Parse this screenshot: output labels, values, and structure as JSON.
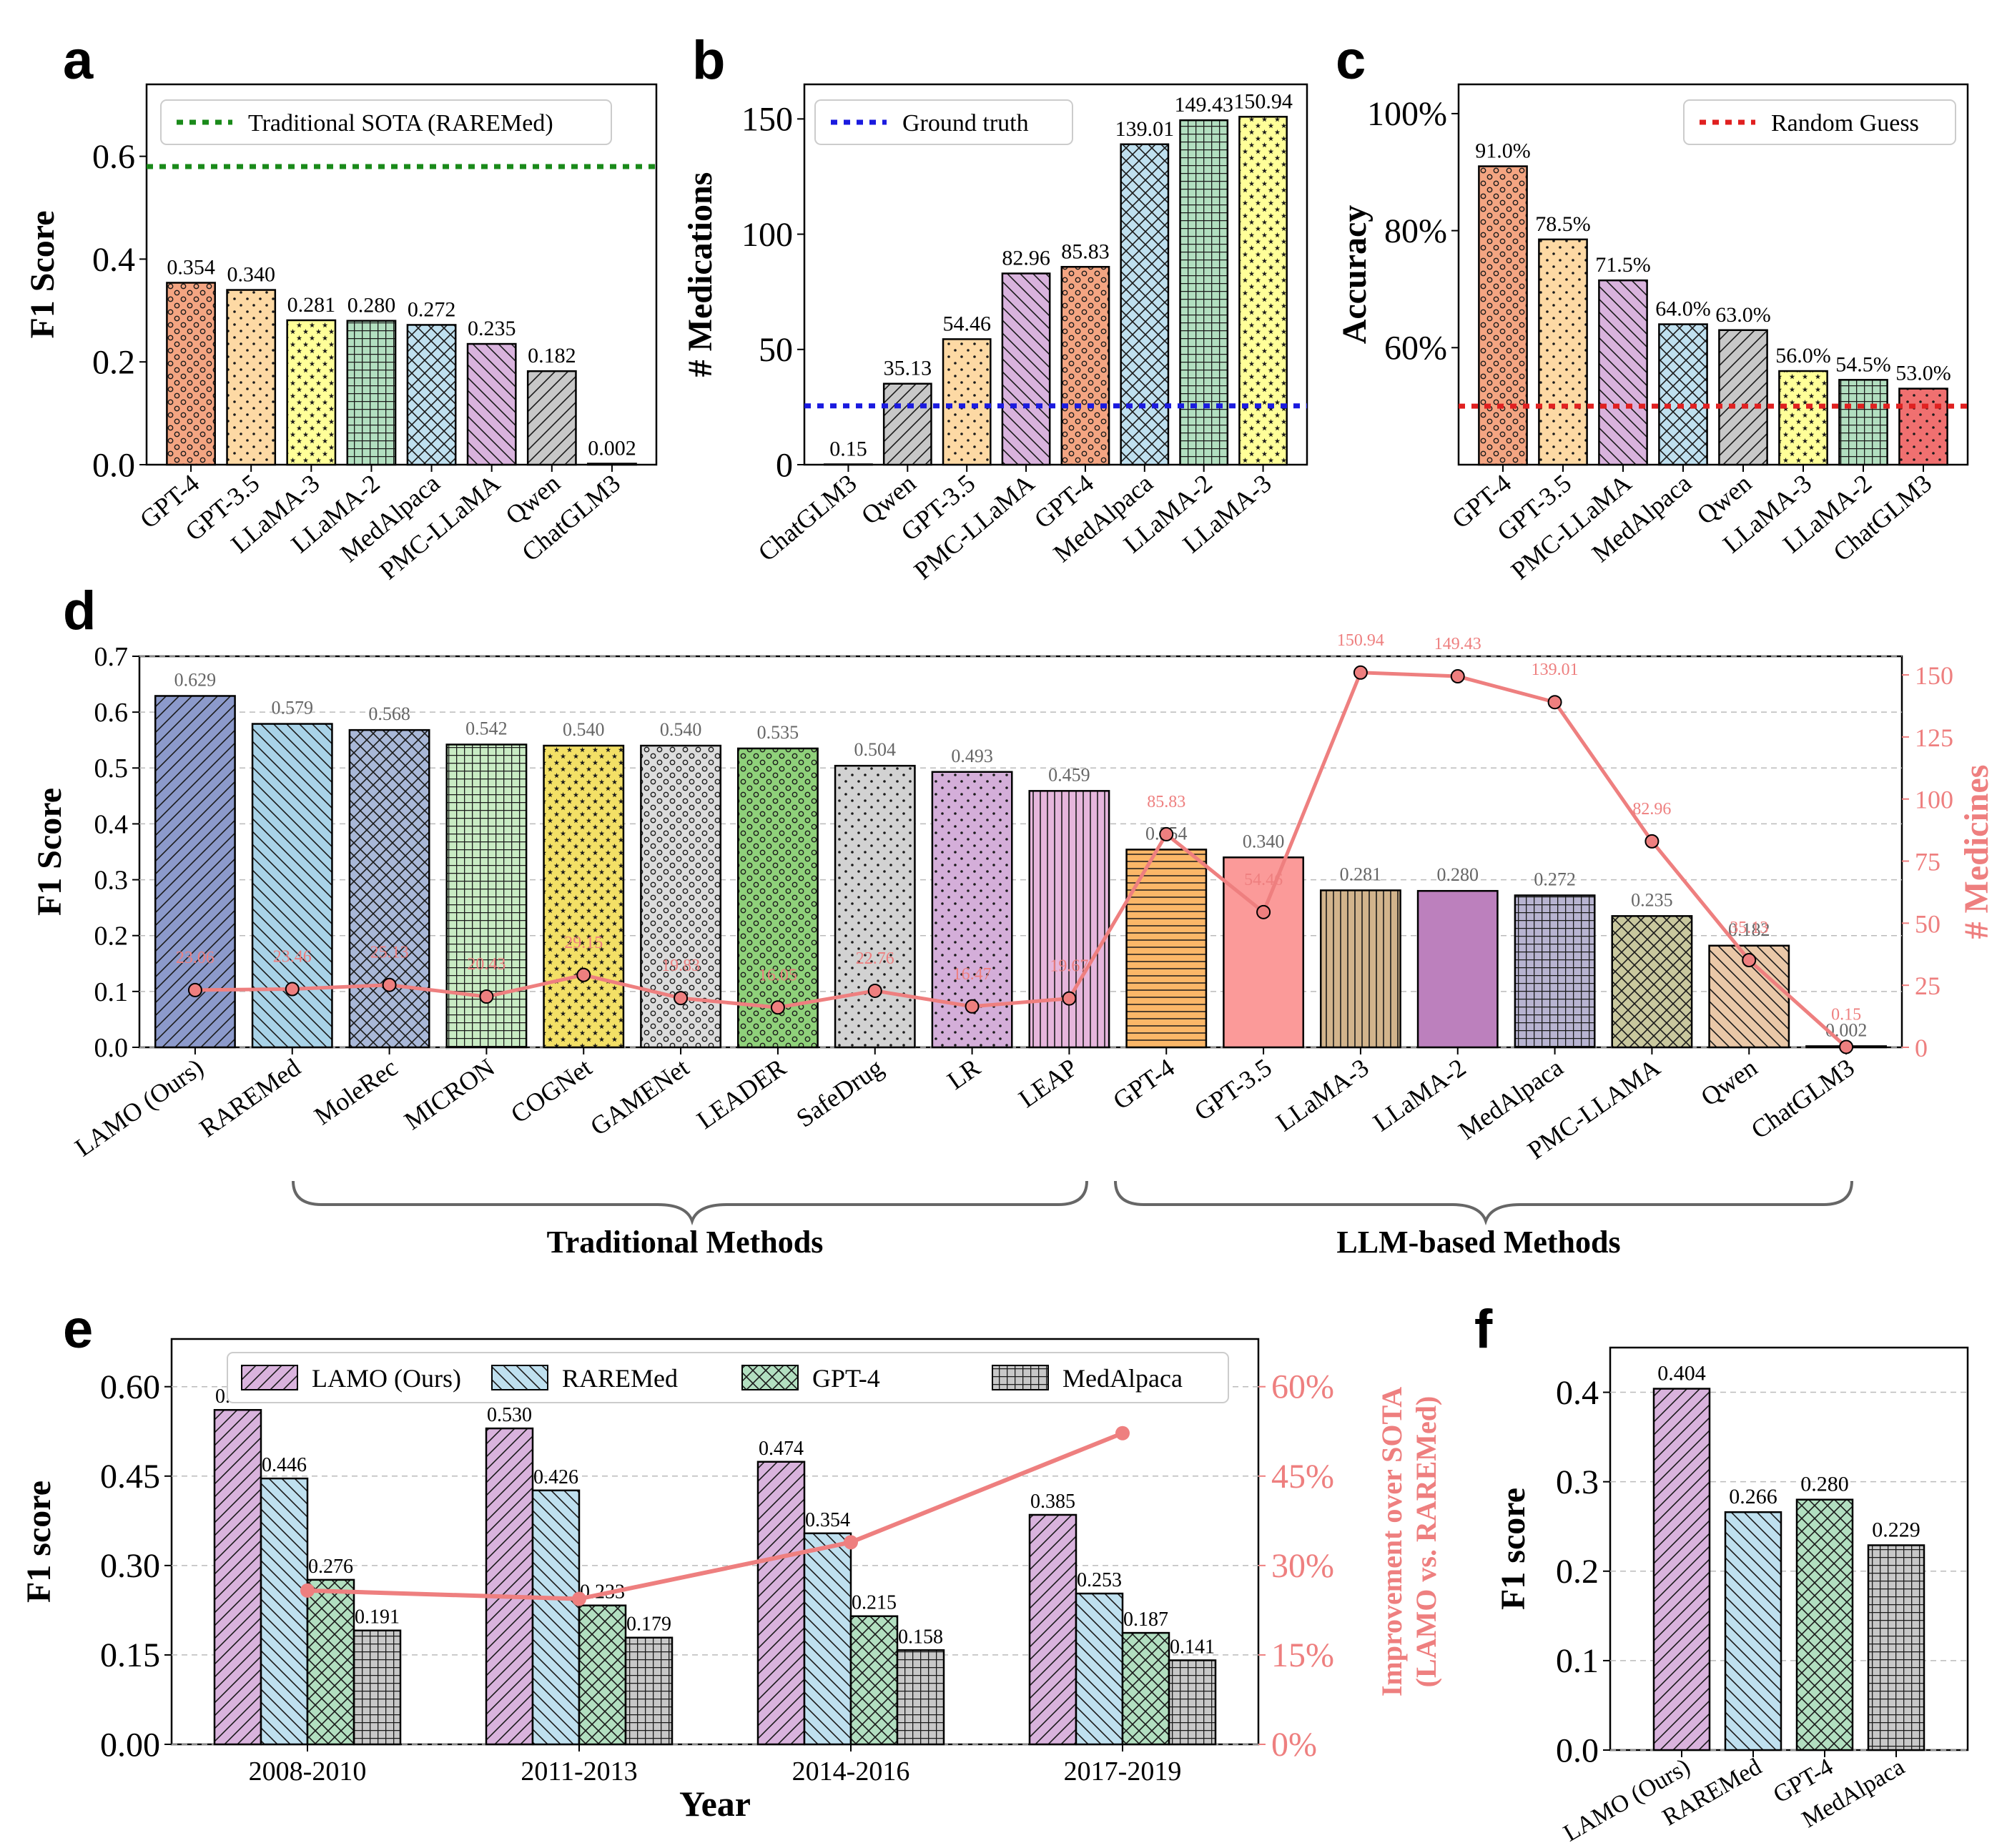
{
  "panels": {
    "a": {
      "letter": "a"
    },
    "b": {
      "letter": "b"
    },
    "c": {
      "letter": "c"
    },
    "d": {
      "letter": "d",
      "group_left": "Traditional Methods",
      "group_right": "LLM-based Methods"
    },
    "e": {
      "letter": "e"
    },
    "f": {
      "letter": "f"
    }
  },
  "chart_data": [
    {
      "id": "a",
      "type": "bar",
      "ylabel": "F1 Score",
      "ylim": [
        0,
        0.74
      ],
      "yticks": [
        "0.0",
        "0.2",
        "0.4",
        "0.6"
      ],
      "ytick_values": [
        0,
        0.2,
        0.4,
        0.6
      ],
      "categories": [
        "GPT-4",
        "GPT-3.5",
        "LLaMA-3",
        "LLaMA-2",
        "MedAlpaca",
        "PMC-LLaMA",
        "Qwen",
        "ChatGLM3"
      ],
      "values": [
        0.354,
        0.34,
        0.281,
        0.28,
        0.272,
        0.235,
        0.182,
        0.002
      ],
      "labels": [
        "0.354",
        "0.340",
        "0.281",
        "0.280",
        "0.272",
        "0.235",
        "0.182",
        "0.002"
      ],
      "colors": [
        "#f4a582",
        "#fdd9a4",
        "#ffff99",
        "#b2dfc0",
        "#bfe0ef",
        "#d9b3dd",
        "#c8c8c8",
        "#dddddd"
      ],
      "patterns": [
        "o",
        "dots",
        "stars",
        "grid",
        "xhatch",
        "back",
        "fwd",
        "none"
      ],
      "reference": {
        "value": 0.58,
        "label": "Traditional SOTA (RAREMed)",
        "color": "#1a8a1a"
      },
      "legend": "top-right"
    },
    {
      "id": "b",
      "type": "bar",
      "ylabel": "# Medications",
      "ylim": [
        0,
        165
      ],
      "yticks": [
        "0",
        "50",
        "100",
        "150"
      ],
      "ytick_values": [
        0,
        50,
        100,
        150
      ],
      "categories": [
        "ChatGLM3",
        "Qwen",
        "GPT-3.5",
        "PMC-LLaMA",
        "GPT-4",
        "MedAlpaca",
        "LLaMA-2",
        "LLaMA-3"
      ],
      "values": [
        0.15,
        35.13,
        54.46,
        82.96,
        85.83,
        139.01,
        149.43,
        150.94
      ],
      "labels": [
        "0.15",
        "35.13",
        "54.46",
        "82.96",
        "85.83",
        "139.01",
        "149.43",
        "150.94"
      ],
      "colors": [
        "#dddddd",
        "#c8c8c8",
        "#fdd9a4",
        "#d9b3dd",
        "#f4a582",
        "#bfe0ef",
        "#b2dfc0",
        "#ffff99"
      ],
      "patterns": [
        "none",
        "fwd",
        "dots",
        "back",
        "o",
        "xhatch",
        "grid",
        "stars"
      ],
      "reference": {
        "value": 25.5,
        "label": "Ground truth",
        "color": "#1a1adf"
      },
      "legend": "top-left"
    },
    {
      "id": "c",
      "type": "bar",
      "ylabel": "Accuracy",
      "ylim": [
        40,
        105
      ],
      "yticks": [
        "60%",
        "80%",
        "100%"
      ],
      "ytick_values": [
        60,
        80,
        100
      ],
      "categories": [
        "GPT-4",
        "GPT-3.5",
        "PMC-LLaMA",
        "MedAlpaca",
        "Qwen",
        "LLaMA-3",
        "LLaMA-2",
        "ChatGLM3"
      ],
      "values": [
        91.0,
        78.5,
        71.5,
        64.0,
        63.0,
        56.0,
        54.5,
        53.0
      ],
      "labels": [
        "91.0%",
        "78.5%",
        "71.5%",
        "64.0%",
        "63.0%",
        "56.0%",
        "54.5%",
        "53.0%"
      ],
      "colors": [
        "#f4a582",
        "#fdd9a4",
        "#d9b3dd",
        "#bfe0ef",
        "#c8c8c8",
        "#ffff99",
        "#b2dfc0",
        "#f07070"
      ],
      "patterns": [
        "o",
        "dots",
        "back",
        "xhatch",
        "fwd",
        "stars",
        "grid",
        "dots"
      ],
      "reference": {
        "value": 50,
        "label": "Random Guess",
        "color": "#e02020"
      },
      "legend": "top-right"
    },
    {
      "id": "d",
      "type": "bar",
      "ylabel": "F1 Score",
      "y2label": "# Medicines",
      "ylim": [
        0,
        0.7
      ],
      "yticks": [
        "0.0",
        "0.1",
        "0.2",
        "0.3",
        "0.4",
        "0.5",
        "0.6",
        "0.7"
      ],
      "ytick_values": [
        0,
        0.1,
        0.2,
        0.3,
        0.4,
        0.5,
        0.6,
        0.7
      ],
      "y2lim": [
        0,
        157.5
      ],
      "y2ticks": [
        "0",
        "25",
        "50",
        "75",
        "100",
        "125",
        "150"
      ],
      "y2tick_values": [
        0,
        25,
        50,
        75,
        100,
        125,
        150
      ],
      "categories": [
        "LAMO (Ours)",
        "RAREMed",
        "MoleRec",
        "MICRON",
        "COGNet",
        "GAMENet",
        "LEADER",
        "SafeDrug",
        "LR",
        "LEAP",
        "GPT-4",
        "GPT-3.5",
        "LLaMA-3",
        "LLaMA-2",
        "MedAlpaca",
        "PMC-LLAMA",
        "Qwen",
        "ChatGLM3"
      ],
      "values": [
        0.629,
        0.579,
        0.568,
        0.542,
        0.54,
        0.54,
        0.535,
        0.504,
        0.493,
        0.459,
        0.354,
        0.34,
        0.281,
        0.28,
        0.272,
        0.235,
        0.182,
        0.002
      ],
      "labels": [
        "0.629",
        "0.579",
        "0.568",
        "0.542",
        "0.540",
        "0.540",
        "0.535",
        "0.504",
        "0.493",
        "0.459",
        "0.354",
        "0.340",
        "0.281",
        "0.280",
        "0.272",
        "0.235",
        "0.182",
        "0.002"
      ],
      "colors": [
        "#8c9acb",
        "#a9d3e8",
        "#a9b8d8",
        "#c9ecc4",
        "#f3e066",
        "#dcdcdc",
        "#8fd17a",
        "#d2d2d2",
        "#d4aed9",
        "#e6b6dc",
        "#fbb768",
        "#fb9a99",
        "#d2b48c",
        "#bc80bd",
        "#b8b4d1",
        "#c9c89e",
        "#eac8a8",
        "#777777"
      ],
      "patterns": [
        "fwd",
        "back",
        "xhatch",
        "grid",
        "stars",
        "o",
        "o",
        "dots",
        "dots",
        "vert",
        "horiz",
        "none",
        "vert",
        "none",
        "grid",
        "xhatch",
        "back",
        "none"
      ],
      "medicines": [
        23.06,
        23.46,
        25.13,
        20.43,
        29.15,
        19.83,
        16.05,
        22.76,
        16.47,
        19.67,
        85.83,
        54.46,
        150.94,
        149.43,
        139.01,
        82.96,
        35.13,
        0.15
      ],
      "medicine_labels": [
        "23.06",
        "23.46",
        "25.13",
        "20.43",
        "29.15",
        "19.83",
        "16.05",
        "22.76",
        "16.47",
        "19.67",
        "85.83",
        "54.46",
        "150.94",
        "149.43",
        "139.01",
        "82.96",
        "35.13",
        "0.15"
      ],
      "line_color": "#ee7f7f"
    },
    {
      "id": "e",
      "type": "bar",
      "xlabel": "Year",
      "ylabel": "F1 score",
      "y2label": "Improvement over SOTA\n(LAMO vs. RAREMed)",
      "ylim": [
        0,
        0.68
      ],
      "yticks": [
        "0.00",
        "0.15",
        "0.30",
        "0.45",
        "0.60"
      ],
      "ytick_values": [
        0,
        0.15,
        0.3,
        0.45,
        0.6
      ],
      "y2lim": [
        0,
        68
      ],
      "y2ticks": [
        "0%",
        "15%",
        "30%",
        "45%",
        "60%"
      ],
      "y2tick_values": [
        0,
        15,
        30,
        45,
        60
      ],
      "categories": [
        "2008-2010",
        "2011-2013",
        "2014-2016",
        "2017-2019"
      ],
      "series": [
        {
          "name": "LAMO (Ours)",
          "values": [
            0.561,
            0.53,
            0.474,
            0.385
          ],
          "labels": [
            "0.561",
            "0.530",
            "0.474",
            "0.385"
          ],
          "color": "#d9b3dd",
          "pattern": "fwd"
        },
        {
          "name": "RAREMed",
          "values": [
            0.446,
            0.426,
            0.354,
            0.253
          ],
          "labels": [
            "0.446",
            "0.426",
            "0.354",
            "0.253"
          ],
          "color": "#bfe0ef",
          "pattern": "back"
        },
        {
          "name": "GPT-4",
          "values": [
            0.276,
            0.233,
            0.215,
            0.187
          ],
          "labels": [
            "0.276",
            "0.233",
            "0.215",
            "0.187"
          ],
          "color": "#b2dfc0",
          "pattern": "xhatch"
        },
        {
          "name": "MedAlpaca",
          "values": [
            0.191,
            0.179,
            0.158,
            0.141
          ],
          "labels": [
            "0.191",
            "0.179",
            "0.158",
            "0.141"
          ],
          "color": "#c8c8c8",
          "pattern": "grid"
        }
      ],
      "improvement": [
        25.8,
        24.4,
        33.9,
        52.2
      ],
      "line_color": "#ee7f7f",
      "legend": "top"
    },
    {
      "id": "f",
      "type": "bar",
      "ylabel": "F1 score",
      "ylim": [
        0,
        0.45
      ],
      "yticks": [
        "0.0",
        "0.1",
        "0.2",
        "0.3",
        "0.4"
      ],
      "ytick_values": [
        0,
        0.1,
        0.2,
        0.3,
        0.4
      ],
      "categories": [
        "LAMO (Ours)",
        "RAREMed",
        "GPT-4",
        "MedAlpaca"
      ],
      "values": [
        0.404,
        0.266,
        0.28,
        0.229
      ],
      "labels": [
        "0.404",
        "0.266",
        "0.280",
        "0.229"
      ],
      "colors": [
        "#d9b3dd",
        "#bfe0ef",
        "#b2dfc0",
        "#c8c8c8"
      ],
      "patterns": [
        "fwd",
        "back",
        "xhatch",
        "grid"
      ]
    }
  ]
}
